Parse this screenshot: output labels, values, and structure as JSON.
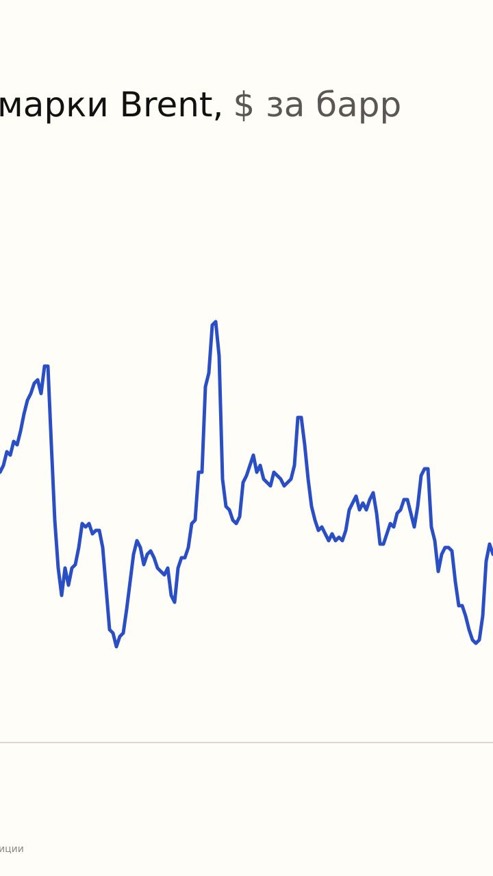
{
  "chart_data": {
    "type": "line",
    "title": "марки Brent,",
    "unit": "$ за барр",
    "footer": "иции",
    "color": "#2a4fc4",
    "ylim": [
      0,
      100
    ],
    "values": [
      39.5,
      40.5,
      42.5,
      42,
      44,
      43.5,
      45.5,
      48,
      50,
      51,
      52.5,
      53,
      51,
      55,
      55,
      43.5,
      32.5,
      25.5,
      21.5,
      25.5,
      23,
      25.5,
      26,
      28.5,
      32,
      31.5,
      32,
      30.5,
      31,
      31,
      28.5,
      22.5,
      16.5,
      16,
      14,
      15.5,
      16,
      19.5,
      23.5,
      27.5,
      29.5,
      28.5,
      26,
      27.5,
      28,
      27,
      25.5,
      25,
      24.5,
      25.5,
      21.5,
      20.5,
      25.5,
      27,
      27,
      28.5,
      32,
      32.5,
      39.5,
      39.5,
      52,
      54,
      61,
      61.5,
      56.5,
      38.5,
      34.5,
      34,
      32.5,
      32,
      33,
      38,
      39,
      40.5,
      42,
      39.5,
      40.5,
      38.5,
      38,
      37.5,
      39.5,
      39,
      38.5,
      37.5,
      38,
      38.5,
      40.5,
      47.5,
      47.5,
      43.5,
      38.5,
      34.5,
      32.5,
      31,
      31.5,
      30.5,
      29.5,
      30.5,
      29.5,
      30,
      29.5,
      31,
      34,
      35,
      36,
      34,
      35,
      34,
      35.5,
      36.5,
      33.5,
      29,
      29,
      30.5,
      32,
      31.5,
      33.5,
      34,
      35.5,
      35.5,
      33.5,
      31.5,
      34.5,
      39,
      40,
      40,
      31.5,
      29.5,
      25,
      27.5,
      28.5,
      28.5,
      28,
      23.5,
      20,
      20,
      18.5,
      16.5,
      15,
      14.5,
      15,
      18.5,
      26.5,
      29,
      27.5
    ]
  }
}
